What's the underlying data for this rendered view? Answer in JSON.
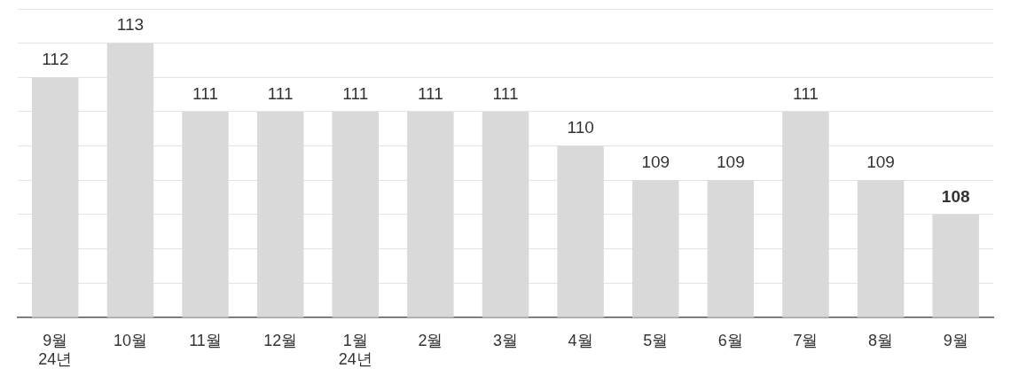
{
  "chart_data": {
    "type": "bar",
    "categories": [
      "9월\n24년",
      "10월",
      "11월",
      "12월",
      "1월\n24년",
      "2월",
      "3월",
      "4월",
      "5월",
      "6월",
      "7월",
      "8월",
      "9월"
    ],
    "values": [
      112,
      113,
      111,
      111,
      111,
      111,
      111,
      110,
      109,
      109,
      111,
      109,
      108
    ],
    "color": "#d9d9d9",
    "ylim": [
      105,
      114
    ],
    "yticks": [
      {
        "value": 105,
        "label": null
      },
      {
        "value": 106,
        "label": null
      },
      {
        "value": 107,
        "label": null
      },
      {
        "value": 108,
        "label": null
      },
      {
        "value": 109,
        "label": null
      },
      {
        "value": 110,
        "label": null
      },
      {
        "value": 111,
        "label": null
      },
      {
        "value": 112,
        "label": null
      },
      {
        "value": 113,
        "label": null
      },
      {
        "value": 114,
        "label": null
      }
    ],
    "grid": "y",
    "tick_labels": "x",
    "data_labels": true,
    "legend": false
  }
}
